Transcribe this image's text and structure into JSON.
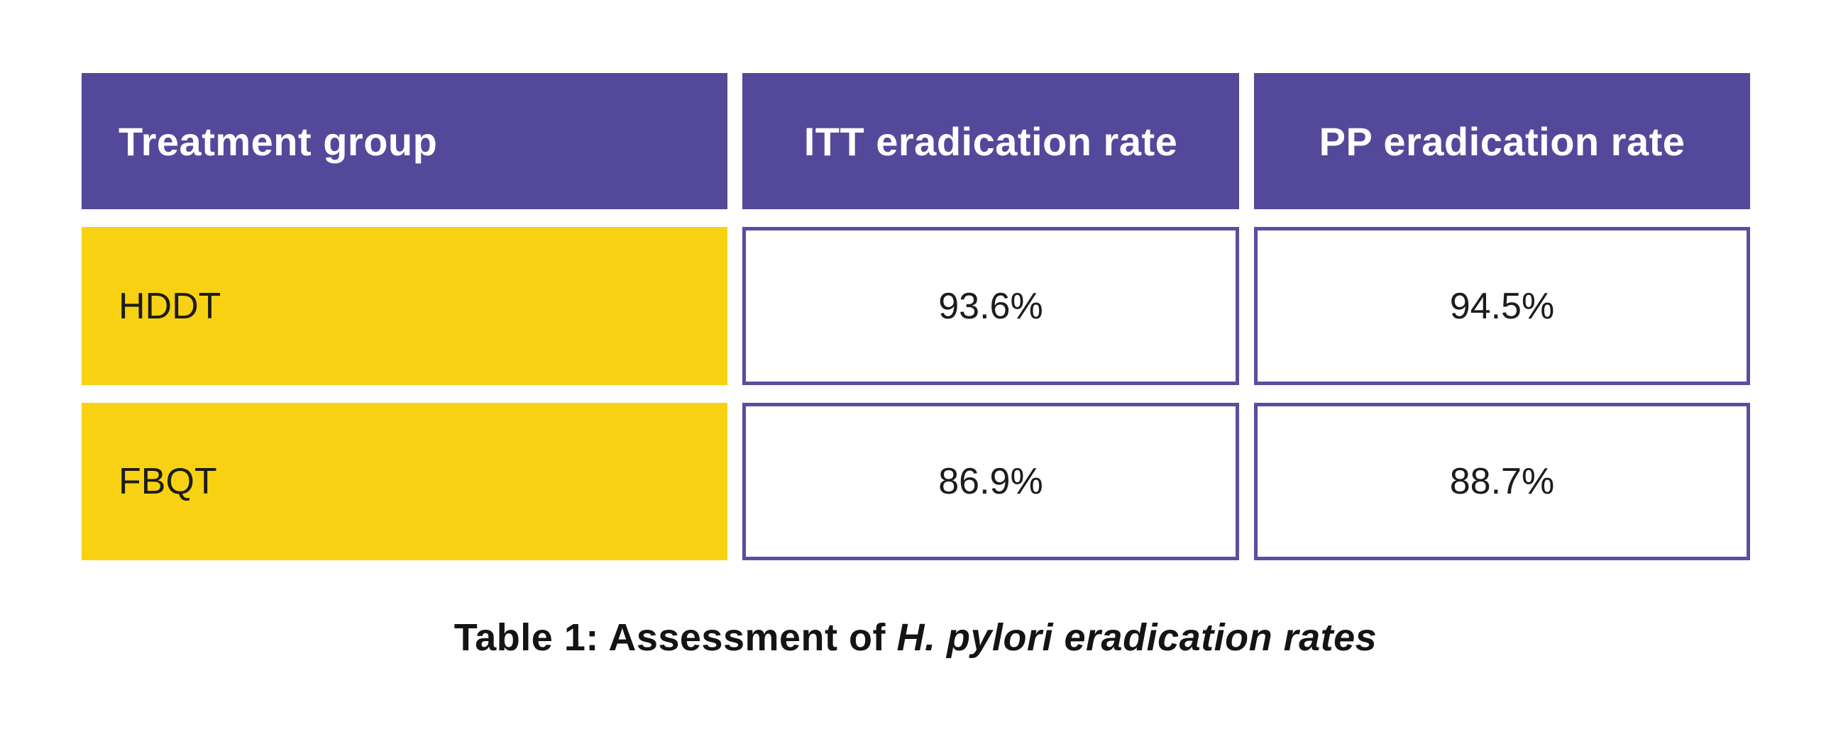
{
  "table": {
    "headers": {
      "col1": "Treatment group",
      "col2": "ITT eradication rate",
      "col3": "PP eradication rate"
    },
    "rows": [
      {
        "group": "HDDT",
        "itt": "93.6%",
        "pp": "94.5%"
      },
      {
        "group": "FBQT",
        "itt": "86.9%",
        "pp": "88.7%"
      }
    ]
  },
  "caption": {
    "prefix": "Table 1: Assessment of ",
    "italic": "H. pylori eradication rates"
  },
  "colors": {
    "header_bg": "#54489B",
    "row_label_bg": "#F8D212",
    "value_border": "#5A4E9E",
    "header_text": "#FFFFFF",
    "body_text": "#1C1C1C",
    "background": "#FFFFFF"
  },
  "chart_data": {
    "type": "table",
    "title": "Table 1: Assessment of H. pylori eradication rates",
    "columns": [
      "Treatment group",
      "ITT eradication rate",
      "PP eradication rate"
    ],
    "rows": [
      [
        "HDDT",
        "93.6%",
        "94.5%"
      ],
      [
        "FBQT",
        "86.9%",
        "88.7%"
      ]
    ],
    "series": [
      {
        "name": "ITT eradication rate",
        "values": [
          93.6,
          86.9
        ]
      },
      {
        "name": "PP eradication rate",
        "values": [
          94.5,
          88.7
        ]
      }
    ],
    "categories": [
      "HDDT",
      "FBQT"
    ],
    "layout_hints": {
      "header_style": "purple solid fill, white bold text",
      "row_label_style": "yellow solid fill, black text",
      "value_cell_style": "white fill with purple border, centered text",
      "caption_position": "bottom center, bold with italic study term"
    }
  }
}
